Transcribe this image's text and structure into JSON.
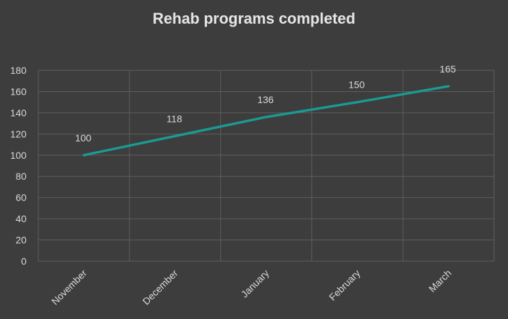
{
  "chart_data": {
    "type": "line",
    "title": "Rehab programs completed",
    "xlabel": "",
    "ylabel": "",
    "categories": [
      "November",
      "December",
      "January",
      "February",
      "March"
    ],
    "series": [
      {
        "values": [
          100,
          118,
          136,
          150,
          165
        ],
        "color": "#1a9a94"
      }
    ],
    "ylim": [
      0,
      180
    ],
    "yticks": [
      0,
      20,
      40,
      60,
      80,
      100,
      120,
      140,
      160,
      180
    ],
    "grid": true,
    "data_labels": true,
    "legend": "none"
  },
  "colors": {
    "background": "#3d3d3d",
    "gridline": "#5e5e5e",
    "text": "#d9d9d9",
    "title": "#e6e6e6"
  }
}
